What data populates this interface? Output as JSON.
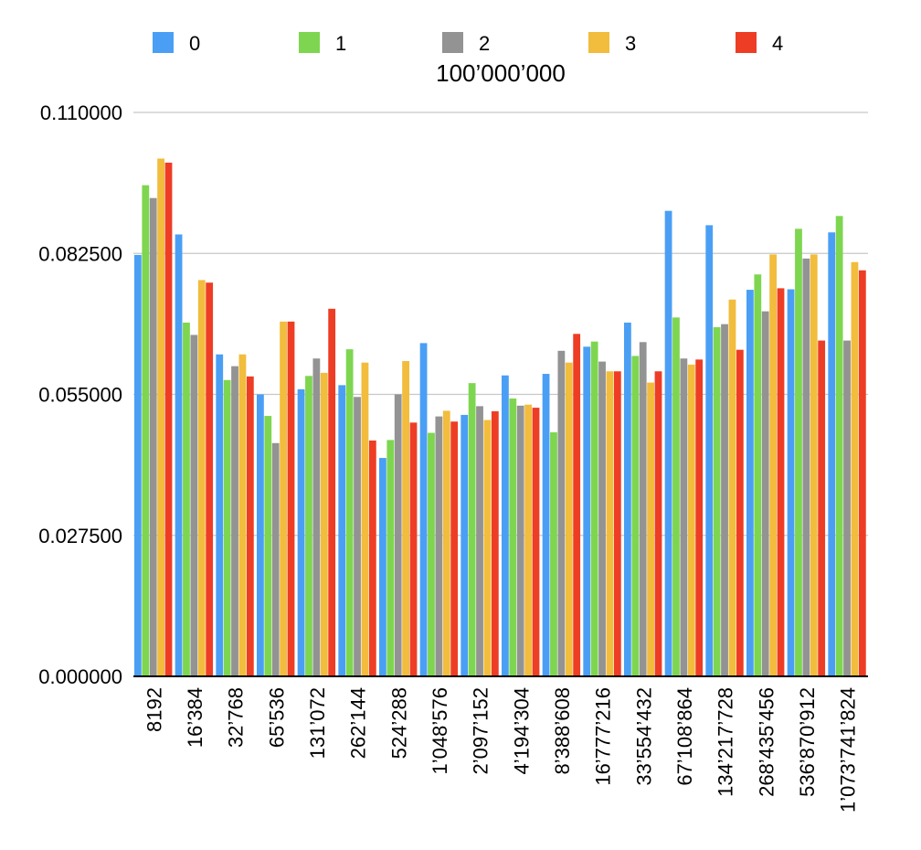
{
  "chart_data": {
    "type": "bar",
    "title": "100’000’000",
    "xlabel": "",
    "ylabel": "",
    "ylim": [
      0,
      0.11
    ],
    "yticks": [
      "0.000000",
      "0.027500",
      "0.055000",
      "0.082500",
      "0.110000"
    ],
    "ytick_values": [
      0,
      0.0275,
      0.055,
      0.0825,
      0.11
    ],
    "grid": true,
    "legend_position": "top",
    "categories": [
      "8192",
      "16’384",
      "32’768",
      "65’536",
      "131’072",
      "262’144",
      "524’288",
      "1’048’576",
      "2’097’152",
      "4’194’304",
      "8’388’608",
      "16’777’216",
      "33’554’432",
      "67’108’864",
      "134’217’728",
      "268’435’456",
      "536’870’912",
      "1’073’741’824"
    ],
    "series": [
      {
        "name": "0",
        "color": "#4a9ff5",
        "values": [
          0.0822,
          0.0862,
          0.0628,
          0.055,
          0.056,
          0.0568,
          0.0426,
          0.065,
          0.051,
          0.0587,
          0.059,
          0.0643,
          0.069,
          0.0908,
          0.088,
          0.0754,
          0.0755,
          0.0866
        ]
      },
      {
        "name": "1",
        "color": "#7ed650",
        "values": [
          0.0958,
          0.069,
          0.0578,
          0.0508,
          0.0586,
          0.0638,
          0.0461,
          0.0475,
          0.0572,
          0.0542,
          0.0476,
          0.0653,
          0.0625,
          0.07,
          0.0681,
          0.0784,
          0.0873,
          0.0898
        ]
      },
      {
        "name": "2",
        "color": "#939393",
        "values": [
          0.0933,
          0.0666,
          0.0605,
          0.0455,
          0.062,
          0.0545,
          0.055,
          0.0507,
          0.0527,
          0.0528,
          0.0635,
          0.0614,
          0.0652,
          0.062,
          0.0687,
          0.0712,
          0.0815,
          0.0655
        ]
      },
      {
        "name": "3",
        "color": "#f2bc3d",
        "values": [
          0.101,
          0.0773,
          0.0628,
          0.0692,
          0.0592,
          0.0612,
          0.0615,
          0.0518,
          0.05,
          0.053,
          0.0612,
          0.0595,
          0.0573,
          0.0608,
          0.0735,
          0.0823,
          0.0823,
          0.0808
        ]
      },
      {
        "name": "4",
        "color": "#ee3d25",
        "values": [
          0.1002,
          0.0768,
          0.0585,
          0.0692,
          0.0717,
          0.046,
          0.0495,
          0.0497,
          0.0517,
          0.0524,
          0.0668,
          0.0595,
          0.0595,
          0.0618,
          0.0637,
          0.0757,
          0.0655,
          0.0792
        ]
      }
    ]
  }
}
